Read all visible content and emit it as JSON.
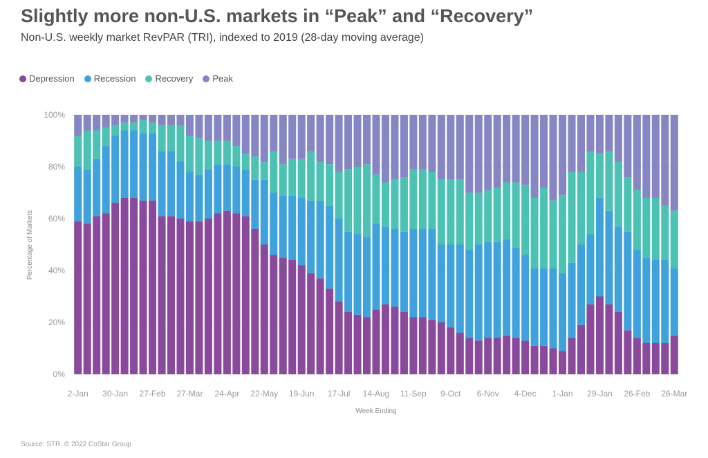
{
  "header": {
    "title": "Slightly more non-U.S. markets in “Peak” and “Recovery”",
    "subtitle": "Non-U.S. weekly market RevPAR (TRI), indexed to 2019 (28-day moving average)"
  },
  "footer": {
    "source": "Source: STR. © 2022 CoStar Group"
  },
  "colors": {
    "Depression": "#8a4a9c",
    "Recession": "#3fa2dc",
    "Recovery": "#4cc2b4",
    "Peak": "#8686c4"
  },
  "chart_data": {
    "type": "bar",
    "stacked": true,
    "xlabel": "Week Ending",
    "ylabel": "Percentage of Markets",
    "ylim": [
      0,
      100
    ],
    "y_ticks": [
      "0%",
      "20%",
      "40%",
      "60%",
      "80%",
      "100%"
    ],
    "x_tick_labels": [
      {
        "i": 0,
        "label": "2-Jan"
      },
      {
        "i": 4,
        "label": "30-Jan"
      },
      {
        "i": 8,
        "label": "27-Feb"
      },
      {
        "i": 12,
        "label": "27-Mar"
      },
      {
        "i": 16,
        "label": "24-Apr"
      },
      {
        "i": 20,
        "label": "22-May"
      },
      {
        "i": 24,
        "label": "19-Jun"
      },
      {
        "i": 28,
        "label": "17-Jul"
      },
      {
        "i": 32,
        "label": "14-Aug"
      },
      {
        "i": 36,
        "label": "11-Sep"
      },
      {
        "i": 40,
        "label": "9-Oct"
      },
      {
        "i": 44,
        "label": "6-Nov"
      },
      {
        "i": 48,
        "label": "4-Dec"
      },
      {
        "i": 52,
        "label": "1-Jan"
      },
      {
        "i": 56,
        "label": "29-Jan"
      },
      {
        "i": 60,
        "label": "26-Feb"
      },
      {
        "i": 64,
        "label": "26-Mar"
      }
    ],
    "legend_position": "top-left",
    "grid": true,
    "series": [
      {
        "name": "Depression",
        "values": [
          59,
          58,
          61,
          62,
          66,
          68,
          68,
          67,
          67,
          61,
          61,
          60,
          59,
          59,
          60,
          62,
          63,
          62,
          61,
          56,
          50,
          46,
          45,
          44,
          42,
          39,
          37,
          33,
          28,
          24,
          23,
          22,
          25,
          27,
          26,
          24,
          22,
          22,
          21,
          20,
          18,
          16,
          14,
          13,
          14,
          14,
          15,
          14,
          13,
          11,
          11,
          10,
          9,
          14,
          19,
          27,
          30,
          27,
          24,
          17,
          14,
          12,
          12,
          12,
          15
        ]
      },
      {
        "name": "Recession",
        "values": [
          21,
          21,
          22,
          26,
          26,
          26,
          26,
          26,
          26,
          25,
          25,
          22,
          19,
          18,
          19,
          19,
          18,
          18,
          18,
          19,
          25,
          24,
          24,
          25,
          26,
          28,
          30,
          32,
          32,
          31,
          31,
          31,
          33,
          30,
          30,
          31,
          34,
          34,
          35,
          30,
          32,
          34,
          34,
          37,
          37,
          37,
          37,
          35,
          33,
          30,
          30,
          31,
          30,
          29,
          31,
          27,
          38,
          36,
          33,
          38,
          34,
          33,
          32,
          32,
          26
        ]
      },
      {
        "name": "Recovery",
        "values": [
          12,
          15,
          11,
          7,
          4,
          3,
          3,
          5,
          4,
          10,
          10,
          14,
          14,
          14,
          11,
          9,
          9,
          8,
          6,
          9,
          7,
          16,
          12,
          14,
          15,
          19,
          15,
          16,
          18,
          24,
          26,
          28,
          19,
          17,
          19,
          21,
          23,
          23,
          22,
          25,
          25,
          25,
          22,
          20,
          20,
          21,
          22,
          25,
          27,
          27,
          31,
          26,
          30,
          35,
          28,
          32,
          17,
          23,
          25,
          21,
          23,
          23,
          24,
          21,
          22
        ]
      },
      {
        "name": "Peak",
        "values": [
          8,
          6,
          6,
          5,
          4,
          3,
          3,
          2,
          3,
          4,
          4,
          4,
          8,
          9,
          10,
          10,
          10,
          12,
          15,
          16,
          18,
          14,
          19,
          17,
          17,
          14,
          18,
          19,
          22,
          21,
          20,
          19,
          23,
          26,
          25,
          24,
          21,
          21,
          22,
          25,
          25,
          25,
          30,
          30,
          29,
          28,
          26,
          26,
          27,
          32,
          28,
          33,
          31,
          22,
          22,
          14,
          15,
          14,
          18,
          24,
          29,
          32,
          32,
          35,
          37
        ]
      }
    ]
  }
}
